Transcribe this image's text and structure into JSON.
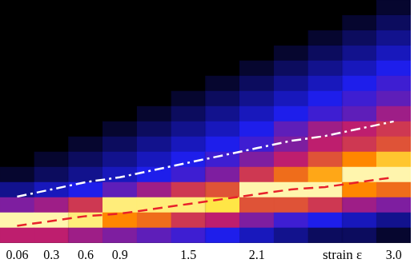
{
  "chart_data": {
    "type": "heatmap",
    "xlabel": "strain ε",
    "categories": [
      "0.06",
      "0.3",
      "0.6",
      "0.9",
      null,
      "1.5",
      null,
      "2.1",
      null,
      null,
      null,
      "3.0"
    ],
    "ylim": [
      0,
      1
    ],
    "tick_labels": "x",
    "grid": false,
    "color_range": [
      0,
      1
    ],
    "cells": [
      [
        0.5,
        0.5,
        0.45,
        0.4,
        0.35,
        0.3,
        0.25,
        0.2,
        0.15,
        0.1,
        0.1,
        0.05
      ],
      [
        0.95,
        0.95,
        0.9,
        0.7,
        0.65,
        0.55,
        0.5,
        0.4,
        0.3,
        0.25,
        0.2,
        0.15
      ],
      [
        0.4,
        0.45,
        0.55,
        0.9,
        0.9,
        0.9,
        0.85,
        0.6,
        0.6,
        0.55,
        0.45,
        0.4
      ],
      [
        0.15,
        0.2,
        0.25,
        0.35,
        0.45,
        0.55,
        0.6,
        0.95,
        0.95,
        0.95,
        0.7,
        0.65
      ],
      [
        0.05,
        0.1,
        0.15,
        0.2,
        0.25,
        0.3,
        0.4,
        0.55,
        0.65,
        0.75,
        0.95,
        0.95
      ],
      [
        0,
        0.05,
        0.1,
        0.15,
        0.2,
        0.25,
        0.3,
        0.4,
        0.5,
        0.6,
        0.7,
        0.8
      ],
      [
        0,
        0,
        0.05,
        0.1,
        0.15,
        0.2,
        0.25,
        0.3,
        0.4,
        0.5,
        0.55,
        0.6
      ],
      [
        0,
        0,
        0,
        0.05,
        0.1,
        0.15,
        0.2,
        0.25,
        0.35,
        0.45,
        0.5,
        0.55
      ],
      [
        0,
        0,
        0,
        0,
        0.05,
        0.1,
        0.15,
        0.2,
        0.25,
        0.3,
        0.35,
        0.45
      ],
      [
        0,
        0,
        0,
        0,
        0,
        0.05,
        0.1,
        0.15,
        0.2,
        0.25,
        0.3,
        0.35
      ],
      [
        0,
        0,
        0,
        0,
        0,
        0,
        0.05,
        0.1,
        0.15,
        0.2,
        0.25,
        0.3
      ],
      [
        0,
        0,
        0,
        0,
        0,
        0,
        0,
        0.05,
        0.1,
        0.15,
        0.2,
        0.25
      ],
      [
        0,
        0,
        0,
        0,
        0,
        0,
        0,
        0,
        0.05,
        0.1,
        0.15,
        0.2
      ],
      [
        0,
        0,
        0,
        0,
        0,
        0,
        0,
        0,
        0,
        0.05,
        0.1,
        0.15
      ],
      [
        0,
        0,
        0,
        0,
        0,
        0,
        0,
        0,
        0,
        0,
        0.05,
        0.1
      ],
      [
        0,
        0,
        0,
        0,
        0,
        0,
        0,
        0,
        0,
        0,
        0,
        0.05
      ]
    ],
    "series": [
      {
        "type": "line",
        "color": "#ffffff",
        "line_style": "dashdot",
        "values": [
          0.19,
          0.22,
          0.25,
          0.27,
          0.3,
          0.33,
          0.36,
          0.39,
          0.42,
          0.44,
          0.47,
          0.5
        ]
      },
      {
        "type": "line",
        "color": "#e8202a",
        "line_style": "dashed",
        "values": [
          0.07,
          0.09,
          0.11,
          0.12,
          0.14,
          0.16,
          0.18,
          0.2,
          0.22,
          0.23,
          0.25,
          0.27
        ]
      }
    ]
  }
}
